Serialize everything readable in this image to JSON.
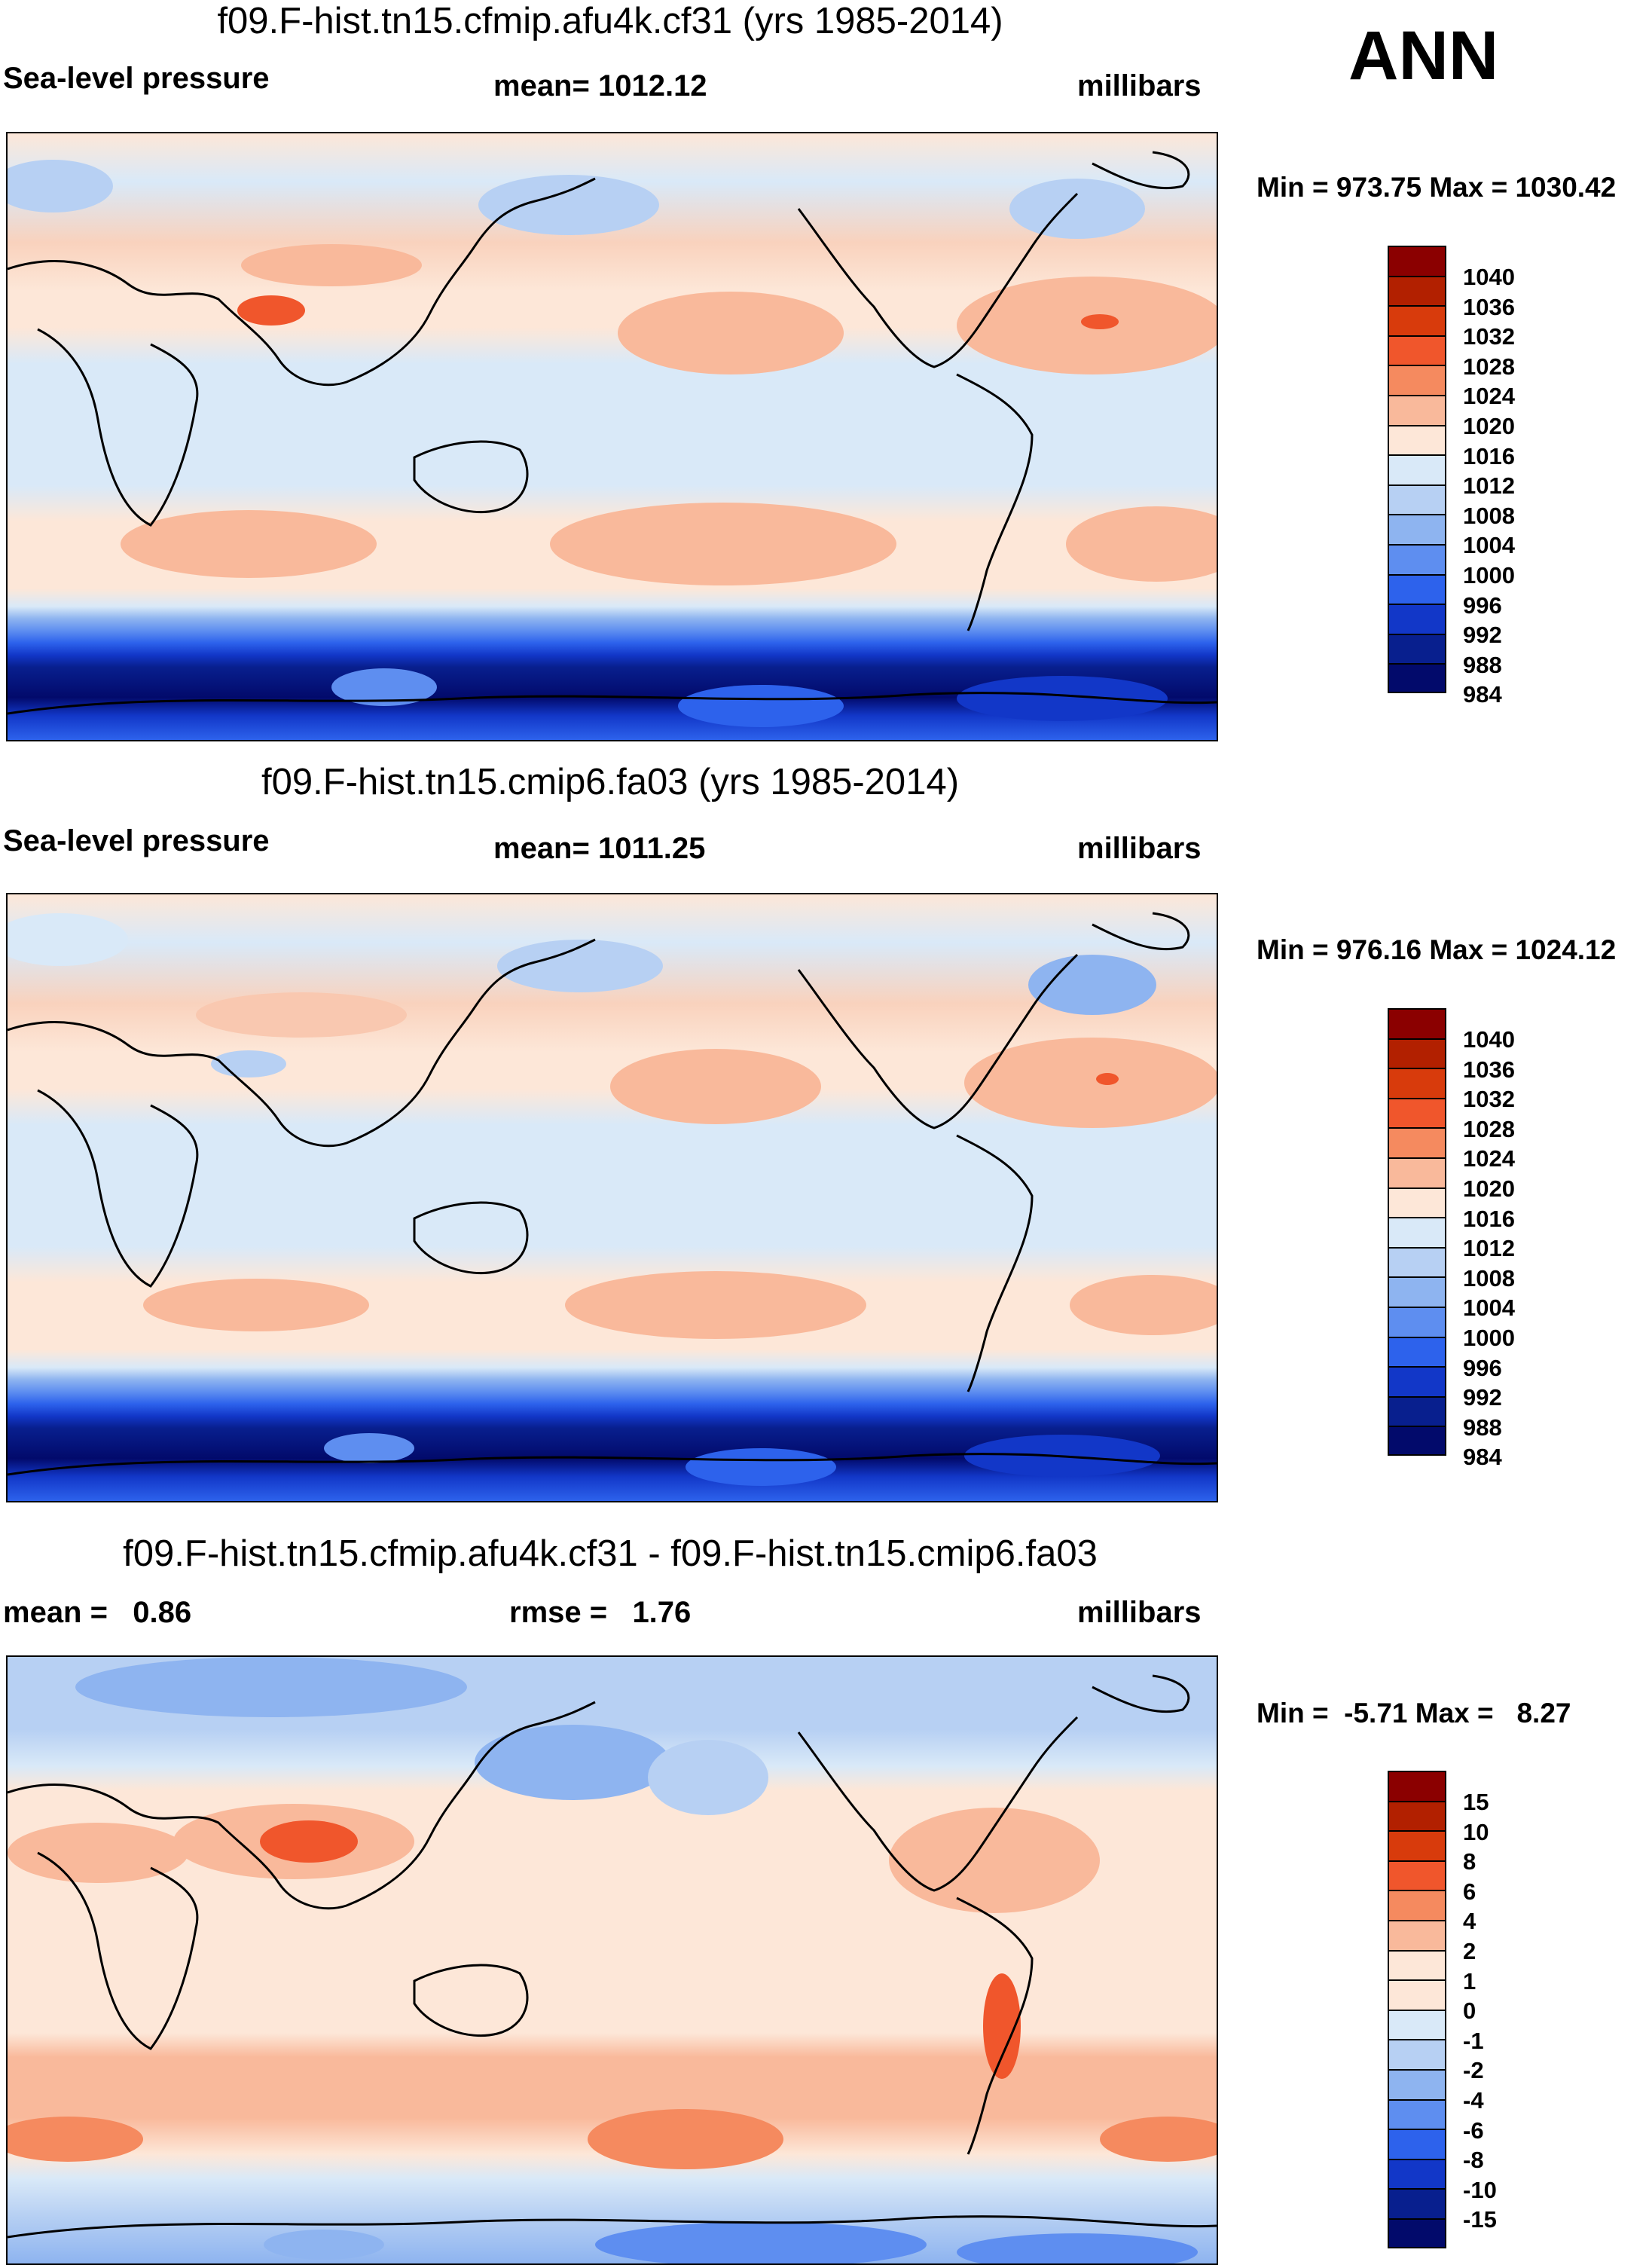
{
  "season": "ANN",
  "panels": [
    {
      "title": "f09.F-hist.tn15.cfmip.afu4k.cf31 (yrs 1985-2014)",
      "left_label": "Sea-level pressure",
      "center_label": "mean= 1012.12",
      "units": "millibars",
      "minmax": "Min = 973.75 Max = 1030.42",
      "colorbar_labels": [
        "1040",
        "1036",
        "1032",
        "1028",
        "1024",
        "1020",
        "1016",
        "1012",
        "1008",
        "1004",
        "1000",
        "996",
        "992",
        "988",
        "984"
      ]
    },
    {
      "title": "f09.F-hist.tn15.cmip6.fa03 (yrs 1985-2014)",
      "left_label": "Sea-level pressure",
      "center_label": "mean= 1011.25",
      "units": "millibars",
      "minmax": "Min = 976.16 Max = 1024.12",
      "colorbar_labels": [
        "1040",
        "1036",
        "1032",
        "1028",
        "1024",
        "1020",
        "1016",
        "1012",
        "1008",
        "1004",
        "1000",
        "996",
        "992",
        "988",
        "984"
      ]
    },
    {
      "title": "f09.F-hist.tn15.cfmip.afu4k.cf31 - f09.F-hist.tn15.cmip6.fa03",
      "left_label": "mean =   0.86",
      "center_label": "rmse =   1.76",
      "units": "millibars",
      "minmax": "Min =  -5.71 Max =   8.27",
      "colorbar_labels": [
        "15",
        "10",
        "8",
        "6",
        "4",
        "2",
        "1",
        "0",
        "-1",
        "-2",
        "-4",
        "-6",
        "-8",
        "-10",
        "-15"
      ]
    }
  ],
  "colors": {
    "abs_scale": [
      "#8b0000",
      "#b22000",
      "#d83b0c",
      "#f0562c",
      "#f58a5f",
      "#f9b99b",
      "#fde7d8",
      "#d9e9f8",
      "#b7d0f3",
      "#8eb4f0",
      "#5e8ef0",
      "#2d62ec",
      "#1237c8",
      "#081f8e",
      "#020a6b"
    ],
    "diff_scale": [
      "#8b0000",
      "#b22000",
      "#d83b0c",
      "#f0562c",
      "#f58a5f",
      "#f9b99b",
      "#fde7d8",
      "#fde7d8",
      "#d9e9f8",
      "#b7d0f3",
      "#8eb4f0",
      "#5e8ef0",
      "#2d62ec",
      "#1237c8",
      "#081f8e",
      "#020a6b"
    ]
  }
}
